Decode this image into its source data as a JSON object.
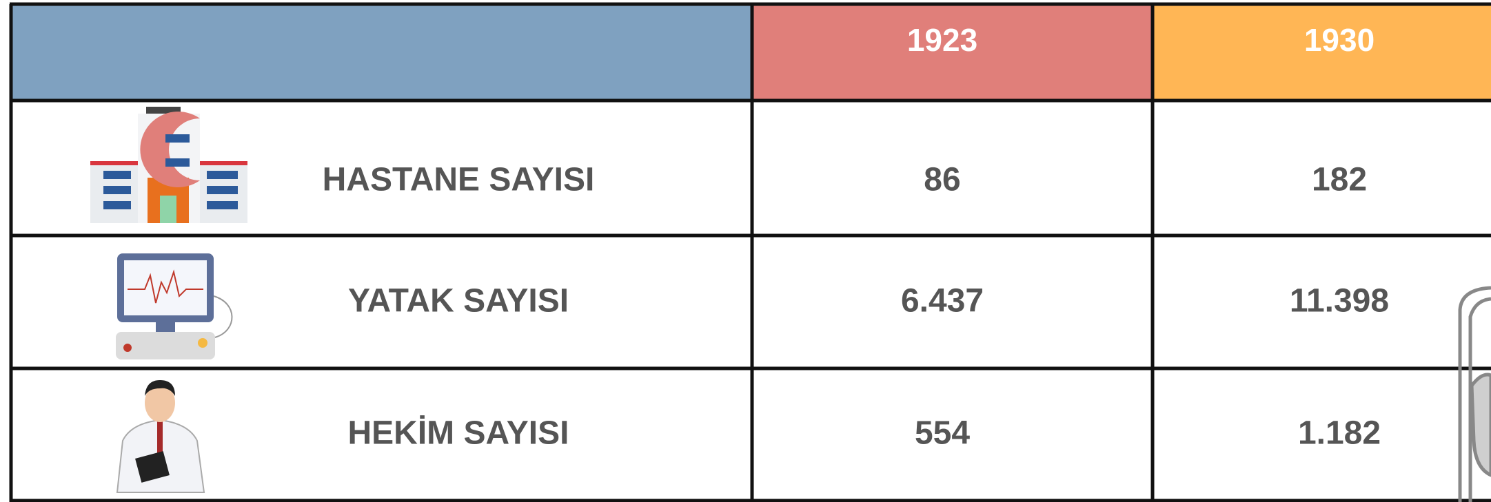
{
  "table": {
    "header": [
      "1923",
      "1930"
    ],
    "rows": [
      {
        "label": "HASTANE SAYISI",
        "values": [
          "86",
          "182"
        ]
      },
      {
        "label": "YATAK SAYISI",
        "values": [
          "6.437",
          "11.398"
        ]
      },
      {
        "label": "HEKİM SAYISI",
        "values": [
          "554",
          "1.182"
        ]
      }
    ]
  }
}
